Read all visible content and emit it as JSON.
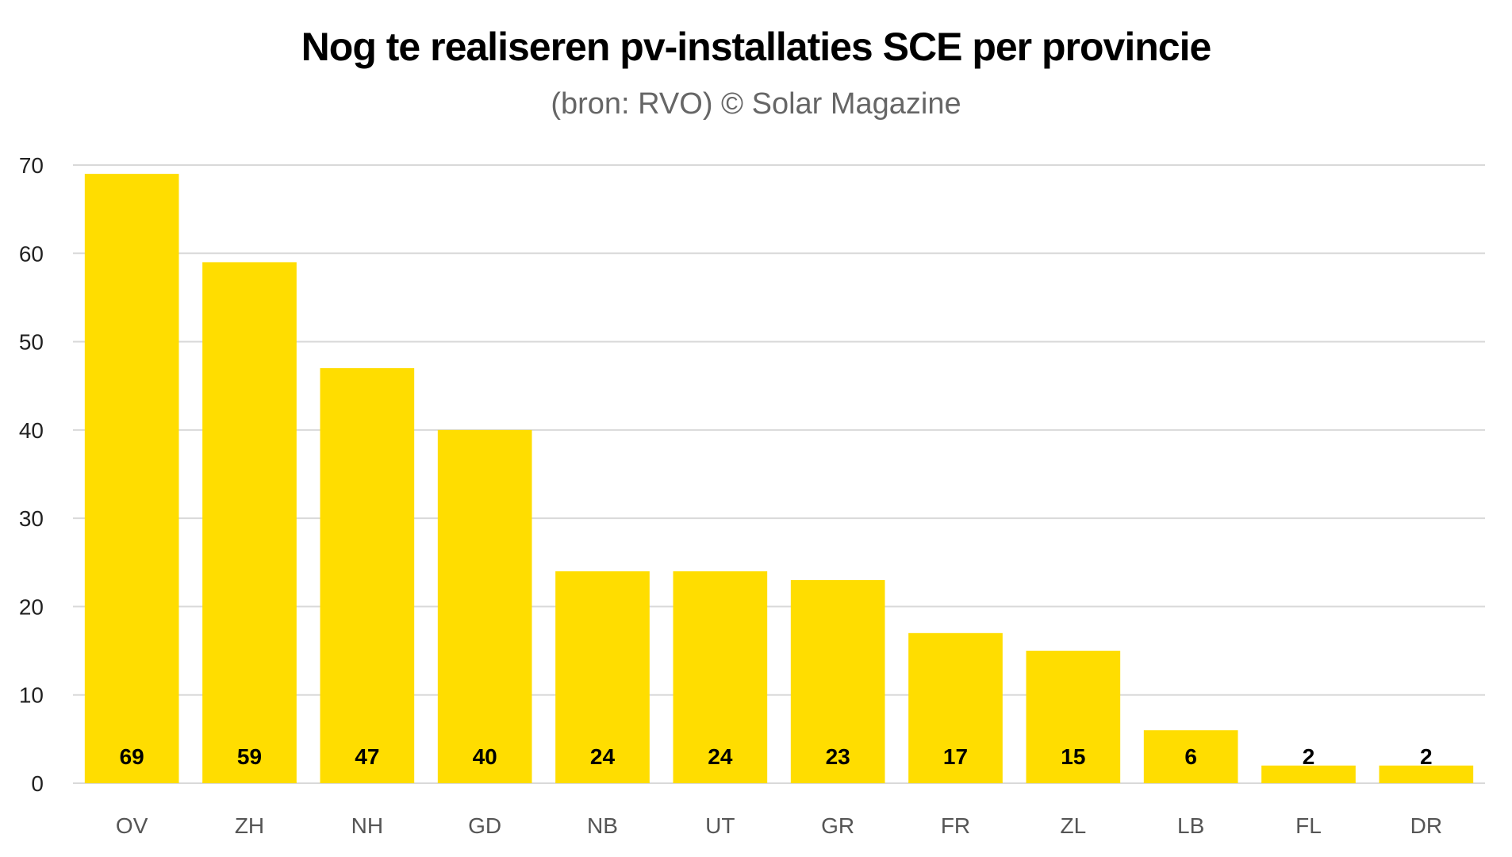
{
  "chart_data": {
    "type": "bar",
    "title": "Nog te realiseren pv-installaties SCE per provincie",
    "subtitle": "(bron: RVO) © Solar Magazine",
    "xlabel": "",
    "ylabel": "",
    "categories": [
      "OV",
      "ZH",
      "NH",
      "GD",
      "NB",
      "UT",
      "GR",
      "FR",
      "ZL",
      "LB",
      "FL",
      "DR"
    ],
    "values": [
      69,
      59,
      47,
      40,
      24,
      24,
      23,
      17,
      15,
      6,
      2,
      2
    ],
    "data_labels": [
      "69",
      "59",
      "47",
      "40",
      "24",
      "24",
      "23",
      "17",
      "15",
      "6",
      "2",
      "2"
    ],
    "ylim": [
      0,
      70
    ],
    "yticks": [
      0,
      10,
      20,
      30,
      40,
      50,
      60,
      70
    ],
    "grid": true,
    "legend": "none",
    "colors": {
      "bar": "#FFDD00",
      "grid": "#d9d9d9",
      "text": "#000000"
    }
  }
}
